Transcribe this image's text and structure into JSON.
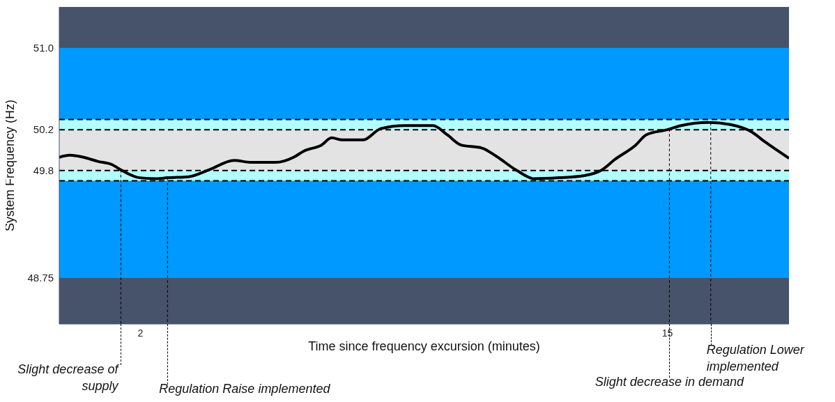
{
  "chart_data": {
    "type": "line",
    "xlabel": "Time since frequency excursion (minutes)",
    "ylabel": "System Frequency (Hz)",
    "x": [
      0,
      0.26,
      0.6,
      0.95,
      1.29,
      1.55,
      1.98,
      2.41,
      2.67,
      3.19,
      3.71,
      4.31,
      4.74,
      5.34,
      5.78,
      6.03,
      6.47,
      6.72,
      6.98,
      7.5,
      7.93,
      8.53,
      9.22,
      9.57,
      9.91,
      10.43,
      10.78,
      11.29,
      11.72,
      12.33,
      12.93,
      13.36,
      13.71,
      14.22,
      14.48,
      15.0,
      15.34,
      16.03,
      16.55,
      17.07,
      17.41,
      18
    ],
    "series": [
      {
        "color": "#000000",
        "values": [
          49.93,
          49.95,
          49.93,
          49.89,
          49.86,
          49.8,
          49.73,
          49.72,
          49.73,
          49.74,
          49.81,
          49.9,
          49.88,
          49.88,
          49.93,
          49.99,
          50.05,
          50.12,
          50.1,
          50.1,
          50.21,
          50.24,
          50.24,
          50.15,
          50.05,
          50.02,
          49.94,
          49.8,
          49.72,
          49.73,
          49.75,
          49.8,
          49.91,
          50.05,
          50.15,
          50.2,
          50.24,
          50.27,
          50.25,
          50.18,
          50.08,
          49.92
        ]
      }
    ],
    "xlim": [
      0,
      18
    ],
    "xticks": [
      2,
      15
    ],
    "ylim": [
      48.3,
      51.4
    ],
    "yticks": [
      {
        "value": 48.75,
        "label": "48.75"
      },
      {
        "value": 49.8,
        "label": "49.8"
      },
      {
        "value": 50.2,
        "label": "50.2"
      },
      {
        "value": 51,
        "label": "51.0"
      }
    ],
    "bands": [
      {
        "axis": "y",
        "from": 48.3,
        "to": 51.4,
        "color": "#46536a"
      },
      {
        "axis": "y",
        "from": 48.75,
        "to": 51,
        "color": "#0099ff"
      },
      {
        "axis": "y",
        "from": 49.7,
        "to": 50.3,
        "color": "#b3ffff"
      },
      {
        "axis": "y",
        "from": 49.8,
        "to": 50.2,
        "color": "#e3e3e3"
      }
    ],
    "ref_lines": [
      {
        "axis": "y",
        "value": 49.7,
        "line_style": "dashed",
        "color": "#000000"
      },
      {
        "axis": "y",
        "value": 49.8,
        "line_style": "dashed",
        "color": "#000000"
      },
      {
        "axis": "y",
        "value": 50.2,
        "line_style": "dashed",
        "color": "#000000"
      },
      {
        "axis": "y",
        "value": 50.3,
        "line_style": "dashed",
        "color": "#000000"
      },
      {
        "axis": "x",
        "value": 1.52,
        "label": "Slight decrease of supply",
        "line_style": "dashed",
        "color": "#000000"
      },
      {
        "axis": "x",
        "value": 2.67,
        "label": "Regulation Raise implemented",
        "line_style": "dashed",
        "color": "#000000"
      },
      {
        "axis": "x",
        "value": 15.05,
        "label": "Slight decrease in demand",
        "line_style": "dashed",
        "color": "#000000"
      },
      {
        "axis": "x",
        "value": 16.07,
        "label": "Regulation Lower implemented",
        "line_style": "dashed",
        "color": "#000000"
      }
    ],
    "marker": "none",
    "line_style": "solid"
  }
}
